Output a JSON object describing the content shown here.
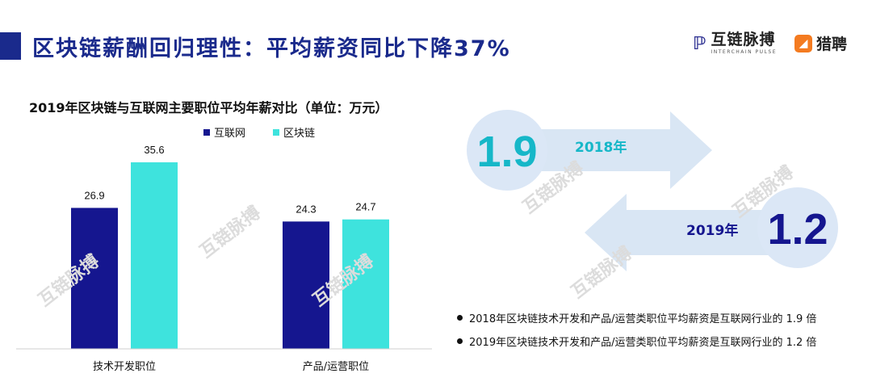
{
  "header": {
    "title": "区块链薪酬回归理性：平均薪资同比下降37%",
    "brand1_name": "互链脉搏",
    "brand1_sub": "INTERCHAIN PULSE",
    "brand2_name": "猎聘"
  },
  "colors": {
    "accent": "#1a2a8c",
    "internet": "#15168f",
    "blockchain": "#3ee3dd",
    "arrow": "#d9e6f4",
    "circle": "#dbe7f6",
    "num": "#16b7c8"
  },
  "chart_data": {
    "type": "bar",
    "title": "2019年区块链与互联网主要职位平均年薪对比（单位：万元）",
    "categories": [
      "技术开发职位",
      "产品/运营职位"
    ],
    "series": [
      {
        "name": "互联网",
        "values": [
          26.9,
          24.3
        ]
      },
      {
        "name": "区块链",
        "values": [
          35.6,
          24.7
        ]
      }
    ],
    "ylim": [
      0,
      40
    ],
    "legend": "top",
    "grid": false
  },
  "compare": {
    "y2018": {
      "year": "2018年",
      "ratio": "1.9"
    },
    "y2019": {
      "year": "2019年",
      "ratio": "1.2"
    }
  },
  "notes": [
    "2018年区块链技术开发和产品/运营类职位平均薪资是互联网行业的 1.9 倍",
    "2019年区块链技术开发和产品/运营类职位平均薪资是互联网行业的 1.2 倍"
  ],
  "watermark": {
    "name": "互链脉搏",
    "sub": "INTERCHAIN PULSE"
  }
}
